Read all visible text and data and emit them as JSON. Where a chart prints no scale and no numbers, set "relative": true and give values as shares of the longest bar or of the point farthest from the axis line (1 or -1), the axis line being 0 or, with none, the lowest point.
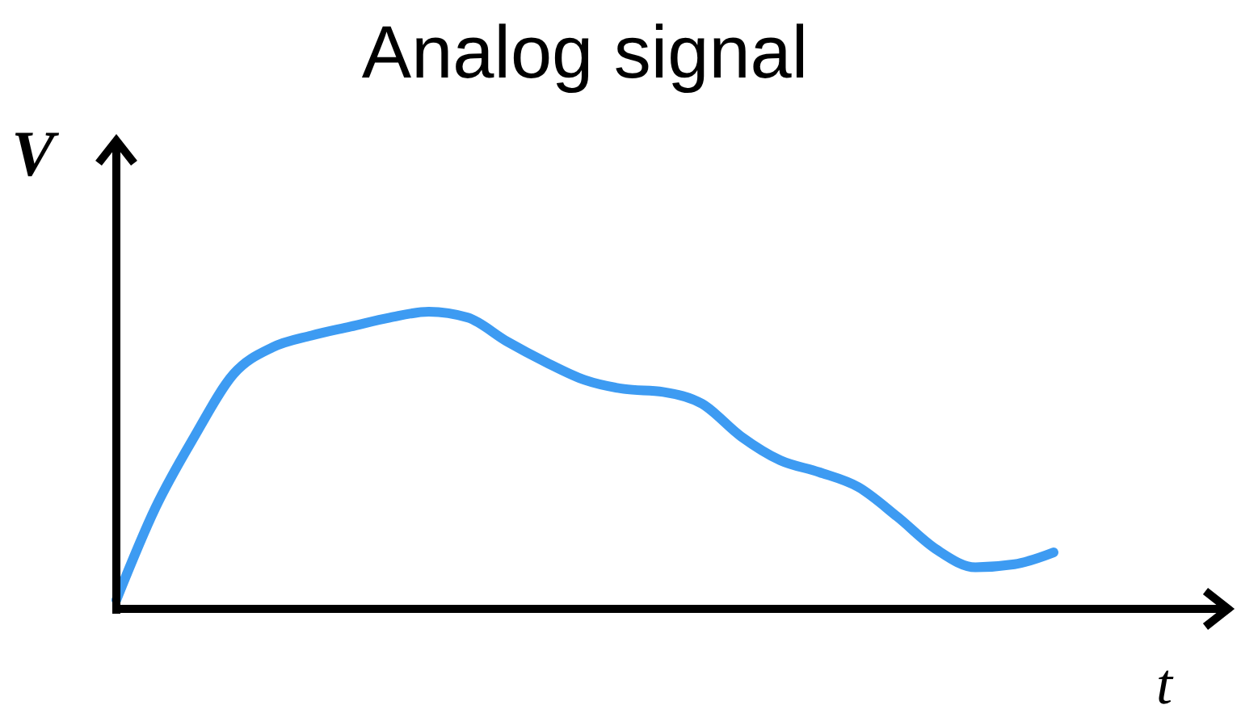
{
  "chart_data": {
    "type": "line",
    "title": "Analog signal",
    "xlabel": "t",
    "ylabel": "V",
    "relative": true,
    "categories": [
      null,
      null,
      null,
      null,
      null,
      null,
      null,
      null,
      null,
      null,
      null,
      null,
      null,
      null,
      null,
      null,
      null,
      null,
      null,
      null,
      null,
      null,
      null,
      null,
      null
    ],
    "series": [
      {
        "color": "#3d9bf2",
        "values": [
          0.03,
          0.34,
          0.58,
          0.79,
          0.88,
          0.92,
          0.95,
          0.98,
          1,
          0.98,
          0.9,
          0.83,
          0.77,
          0.74,
          0.73,
          0.69,
          0.58,
          0.5,
          0.46,
          0.41,
          0.31,
          0.2,
          0.14,
          0.15,
          0.19
        ]
      }
    ]
  }
}
